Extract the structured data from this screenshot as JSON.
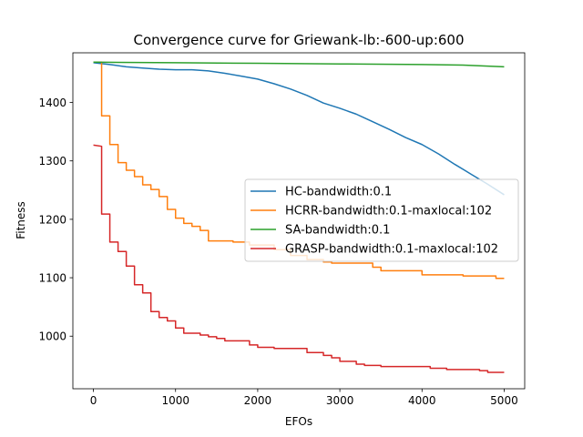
{
  "chart_data": {
    "type": "line",
    "title": "Convergence curve for Griewank-lb:-600-up:600",
    "xlabel": "EFOs",
    "ylabel": "Fitness",
    "xlim": [
      -250,
      5250
    ],
    "ylim": [
      910,
      1485
    ],
    "xticks": [
      0,
      1000,
      2000,
      3000,
      4000,
      5000
    ],
    "yticks": [
      1000,
      1100,
      1200,
      1300,
      1400
    ],
    "grid": false,
    "legend_position": "center-right",
    "series": [
      {
        "name": "HC-bandwidth:0.1",
        "color": "#1f77b4",
        "step": false,
        "points": [
          [
            0,
            1468
          ],
          [
            200,
            1465
          ],
          [
            400,
            1461
          ],
          [
            600,
            1459
          ],
          [
            800,
            1457
          ],
          [
            1000,
            1456
          ],
          [
            1200,
            1456
          ],
          [
            1400,
            1454
          ],
          [
            1600,
            1450
          ],
          [
            1800,
            1445
          ],
          [
            2000,
            1440
          ],
          [
            2200,
            1432
          ],
          [
            2400,
            1423
          ],
          [
            2600,
            1412
          ],
          [
            2800,
            1399
          ],
          [
            3000,
            1390
          ],
          [
            3200,
            1380
          ],
          [
            3400,
            1367
          ],
          [
            3600,
            1354
          ],
          [
            3800,
            1340
          ],
          [
            4000,
            1328
          ],
          [
            4200,
            1312
          ],
          [
            4400,
            1294
          ],
          [
            4600,
            1277
          ],
          [
            4800,
            1260
          ],
          [
            5000,
            1242
          ]
        ]
      },
      {
        "name": "HCRR-bandwidth:0.1-maxlocal:102",
        "color": "#ff7f0e",
        "step": true,
        "points": [
          [
            0,
            1469
          ],
          [
            100,
            1469
          ],
          [
            100,
            1377
          ],
          [
            200,
            1377
          ],
          [
            200,
            1328
          ],
          [
            300,
            1328
          ],
          [
            300,
            1297
          ],
          [
            400,
            1297
          ],
          [
            400,
            1284
          ],
          [
            500,
            1284
          ],
          [
            500,
            1273
          ],
          [
            600,
            1273
          ],
          [
            600,
            1259
          ],
          [
            700,
            1259
          ],
          [
            700,
            1251
          ],
          [
            800,
            1251
          ],
          [
            800,
            1239
          ],
          [
            900,
            1239
          ],
          [
            900,
            1217
          ],
          [
            1000,
            1217
          ],
          [
            1000,
            1202
          ],
          [
            1100,
            1202
          ],
          [
            1100,
            1193
          ],
          [
            1200,
            1193
          ],
          [
            1200,
            1188
          ],
          [
            1300,
            1188
          ],
          [
            1300,
            1181
          ],
          [
            1400,
            1181
          ],
          [
            1400,
            1163
          ],
          [
            1700,
            1163
          ],
          [
            1700,
            1161
          ],
          [
            1900,
            1161
          ],
          [
            1900,
            1156
          ],
          [
            2200,
            1156
          ],
          [
            2200,
            1148
          ],
          [
            2400,
            1148
          ],
          [
            2400,
            1138
          ],
          [
            2600,
            1138
          ],
          [
            2600,
            1131
          ],
          [
            2800,
            1131
          ],
          [
            2800,
            1127
          ],
          [
            2900,
            1127
          ],
          [
            2900,
            1125
          ],
          [
            3400,
            1125
          ],
          [
            3400,
            1118
          ],
          [
            3500,
            1118
          ],
          [
            3500,
            1112
          ],
          [
            4000,
            1112
          ],
          [
            4000,
            1105
          ],
          [
            4500,
            1105
          ],
          [
            4500,
            1103
          ],
          [
            4900,
            1103
          ],
          [
            4900,
            1099
          ],
          [
            5000,
            1099
          ]
        ]
      },
      {
        "name": "SA-bandwidth:0.1",
        "color": "#2ca02c",
        "step": false,
        "points": [
          [
            0,
            1469
          ],
          [
            1000,
            1468
          ],
          [
            2000,
            1467
          ],
          [
            3000,
            1466
          ],
          [
            4000,
            1465
          ],
          [
            4500,
            1464
          ],
          [
            5000,
            1461
          ]
        ]
      },
      {
        "name": "GRASP-bandwidth:0.1-maxlocal:102",
        "color": "#d62728",
        "step": true,
        "points": [
          [
            0,
            1327
          ],
          [
            100,
            1325
          ],
          [
            100,
            1209
          ],
          [
            200,
            1209
          ],
          [
            200,
            1161
          ],
          [
            300,
            1161
          ],
          [
            300,
            1145
          ],
          [
            400,
            1145
          ],
          [
            400,
            1120
          ],
          [
            500,
            1120
          ],
          [
            500,
            1088
          ],
          [
            600,
            1088
          ],
          [
            600,
            1074
          ],
          [
            700,
            1074
          ],
          [
            700,
            1042
          ],
          [
            800,
            1042
          ],
          [
            800,
            1032
          ],
          [
            900,
            1032
          ],
          [
            900,
            1026
          ],
          [
            1000,
            1026
          ],
          [
            1000,
            1014
          ],
          [
            1100,
            1014
          ],
          [
            1100,
            1005
          ],
          [
            1300,
            1005
          ],
          [
            1300,
            1002
          ],
          [
            1400,
            1002
          ],
          [
            1400,
            999
          ],
          [
            1500,
            999
          ],
          [
            1500,
            996
          ],
          [
            1600,
            996
          ],
          [
            1600,
            992
          ],
          [
            1900,
            992
          ],
          [
            1900,
            985
          ],
          [
            2000,
            985
          ],
          [
            2000,
            981
          ],
          [
            2200,
            981
          ],
          [
            2200,
            979
          ],
          [
            2600,
            979
          ],
          [
            2600,
            972
          ],
          [
            2800,
            972
          ],
          [
            2800,
            967
          ],
          [
            2900,
            967
          ],
          [
            2900,
            963
          ],
          [
            3000,
            963
          ],
          [
            3000,
            957
          ],
          [
            3200,
            957
          ],
          [
            3200,
            952
          ],
          [
            3300,
            952
          ],
          [
            3300,
            950
          ],
          [
            3500,
            950
          ],
          [
            3500,
            948
          ],
          [
            4100,
            948
          ],
          [
            4100,
            945
          ],
          [
            4300,
            945
          ],
          [
            4300,
            943
          ],
          [
            4700,
            943
          ],
          [
            4700,
            941
          ],
          [
            4800,
            941
          ],
          [
            4800,
            938
          ],
          [
            5000,
            938
          ]
        ]
      }
    ]
  }
}
